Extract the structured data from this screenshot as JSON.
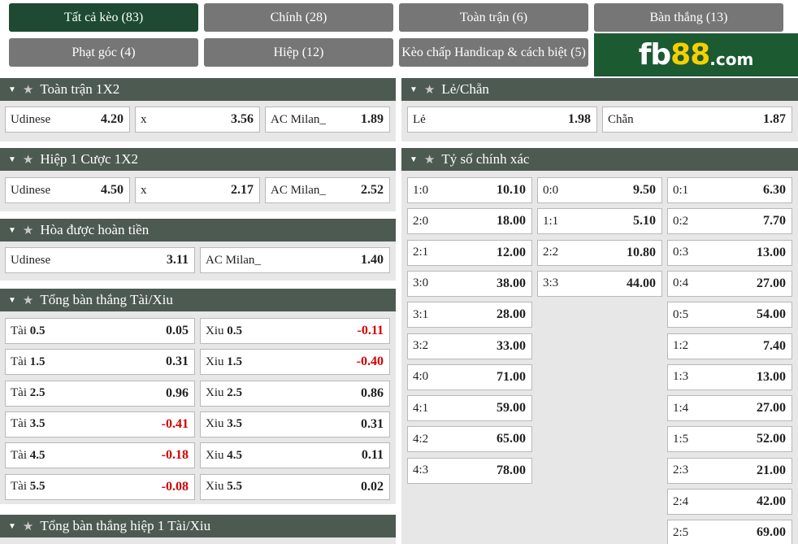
{
  "tabs": [
    {
      "label": "Tất cả kèo (83)",
      "active": true
    },
    {
      "label": "Chính (28)"
    },
    {
      "label": "Toàn trận (6)"
    },
    {
      "label": "Bàn thắng (13)"
    },
    {
      "label": "Phạt góc (4)"
    },
    {
      "label": "Hiệp (12)"
    },
    {
      "label": "Kèo chấp Handicap & cách biệt (5)"
    }
  ],
  "logo": {
    "fb": "fb",
    "n88": "88",
    "com": ".com"
  },
  "icons": {
    "collapse": "triangle-down-icon",
    "favorite": "star-icon"
  },
  "glyphs": {
    "arrow": "▼",
    "star": "★"
  },
  "full_1x2": {
    "title": "Toàn trận 1X2",
    "cells": [
      {
        "label": "Udinese",
        "odd": "4.20"
      },
      {
        "label": "x",
        "odd": "3.56"
      },
      {
        "label": "AC Milan_",
        "odd": "1.89"
      }
    ]
  },
  "half_1x2": {
    "title": "Hiệp 1 Cược 1X2",
    "cells": [
      {
        "label": "Udinese",
        "odd": "4.50"
      },
      {
        "label": "x",
        "odd": "2.17"
      },
      {
        "label": "AC Milan_",
        "odd": "2.52"
      }
    ]
  },
  "draw_no_bet": {
    "title": "Hòa được hoàn tiền",
    "cells": [
      {
        "label": "Udinese",
        "odd": "3.11"
      },
      {
        "label": "AC Milan_",
        "odd": "1.40"
      }
    ]
  },
  "over_under": {
    "title": "Tổng bàn thắng Tài/Xiu",
    "rows": [
      {
        "over": "Tài",
        "line": "0.5",
        "over_odd": "0.05",
        "under": "Xiu",
        "under_odd": "-0.11"
      },
      {
        "over": "Tài",
        "line": "1.5",
        "over_odd": "0.31",
        "under": "Xiu",
        "under_odd": "-0.40"
      },
      {
        "over": "Tài",
        "line": "2.5",
        "over_odd": "0.96",
        "under": "Xiu",
        "under_odd": "0.86"
      },
      {
        "over": "Tài",
        "line": "3.5",
        "over_odd": "-0.41",
        "under": "Xiu",
        "under_odd": "0.31"
      },
      {
        "over": "Tài",
        "line": "4.5",
        "over_odd": "-0.18",
        "under": "Xiu",
        "under_odd": "0.11"
      },
      {
        "over": "Tài",
        "line": "5.5",
        "over_odd": "-0.08",
        "under": "Xiu",
        "under_odd": "0.02"
      }
    ]
  },
  "half_over_under": {
    "title": "Tổng bàn thắng hiệp 1 Tài/Xiu"
  },
  "odd_even": {
    "title": "Lẻ/Chẵn",
    "cells": [
      {
        "label": "Lẻ",
        "odd": "1.98"
      },
      {
        "label": "Chẵn",
        "odd": "1.87"
      }
    ]
  },
  "correct_score": {
    "title": "Tỷ số chính xác",
    "home": [
      {
        "score": "1:0",
        "odd": "10.10"
      },
      {
        "score": "2:0",
        "odd": "18.00"
      },
      {
        "score": "2:1",
        "odd": "12.00"
      },
      {
        "score": "3:0",
        "odd": "38.00"
      },
      {
        "score": "3:1",
        "odd": "28.00"
      },
      {
        "score": "3:2",
        "odd": "33.00"
      },
      {
        "score": "4:0",
        "odd": "71.00"
      },
      {
        "score": "4:1",
        "odd": "59.00"
      },
      {
        "score": "4:2",
        "odd": "65.00"
      },
      {
        "score": "4:3",
        "odd": "78.00"
      }
    ],
    "draw": [
      {
        "score": "0:0",
        "odd": "9.50"
      },
      {
        "score": "1:1",
        "odd": "5.10"
      },
      {
        "score": "2:2",
        "odd": "10.80"
      },
      {
        "score": "3:3",
        "odd": "44.00"
      }
    ],
    "away": [
      {
        "score": "0:1",
        "odd": "6.30"
      },
      {
        "score": "0:2",
        "odd": "7.70"
      },
      {
        "score": "0:3",
        "odd": "13.00"
      },
      {
        "score": "0:4",
        "odd": "27.00"
      },
      {
        "score": "0:5",
        "odd": "54.00"
      },
      {
        "score": "1:2",
        "odd": "7.40"
      },
      {
        "score": "1:3",
        "odd": "13.00"
      },
      {
        "score": "1:4",
        "odd": "27.00"
      },
      {
        "score": "1:5",
        "odd": "52.00"
      },
      {
        "score": "2:3",
        "odd": "21.00"
      },
      {
        "score": "2:4",
        "odd": "42.00"
      },
      {
        "score": "2:5",
        "odd": "69.00"
      }
    ]
  }
}
